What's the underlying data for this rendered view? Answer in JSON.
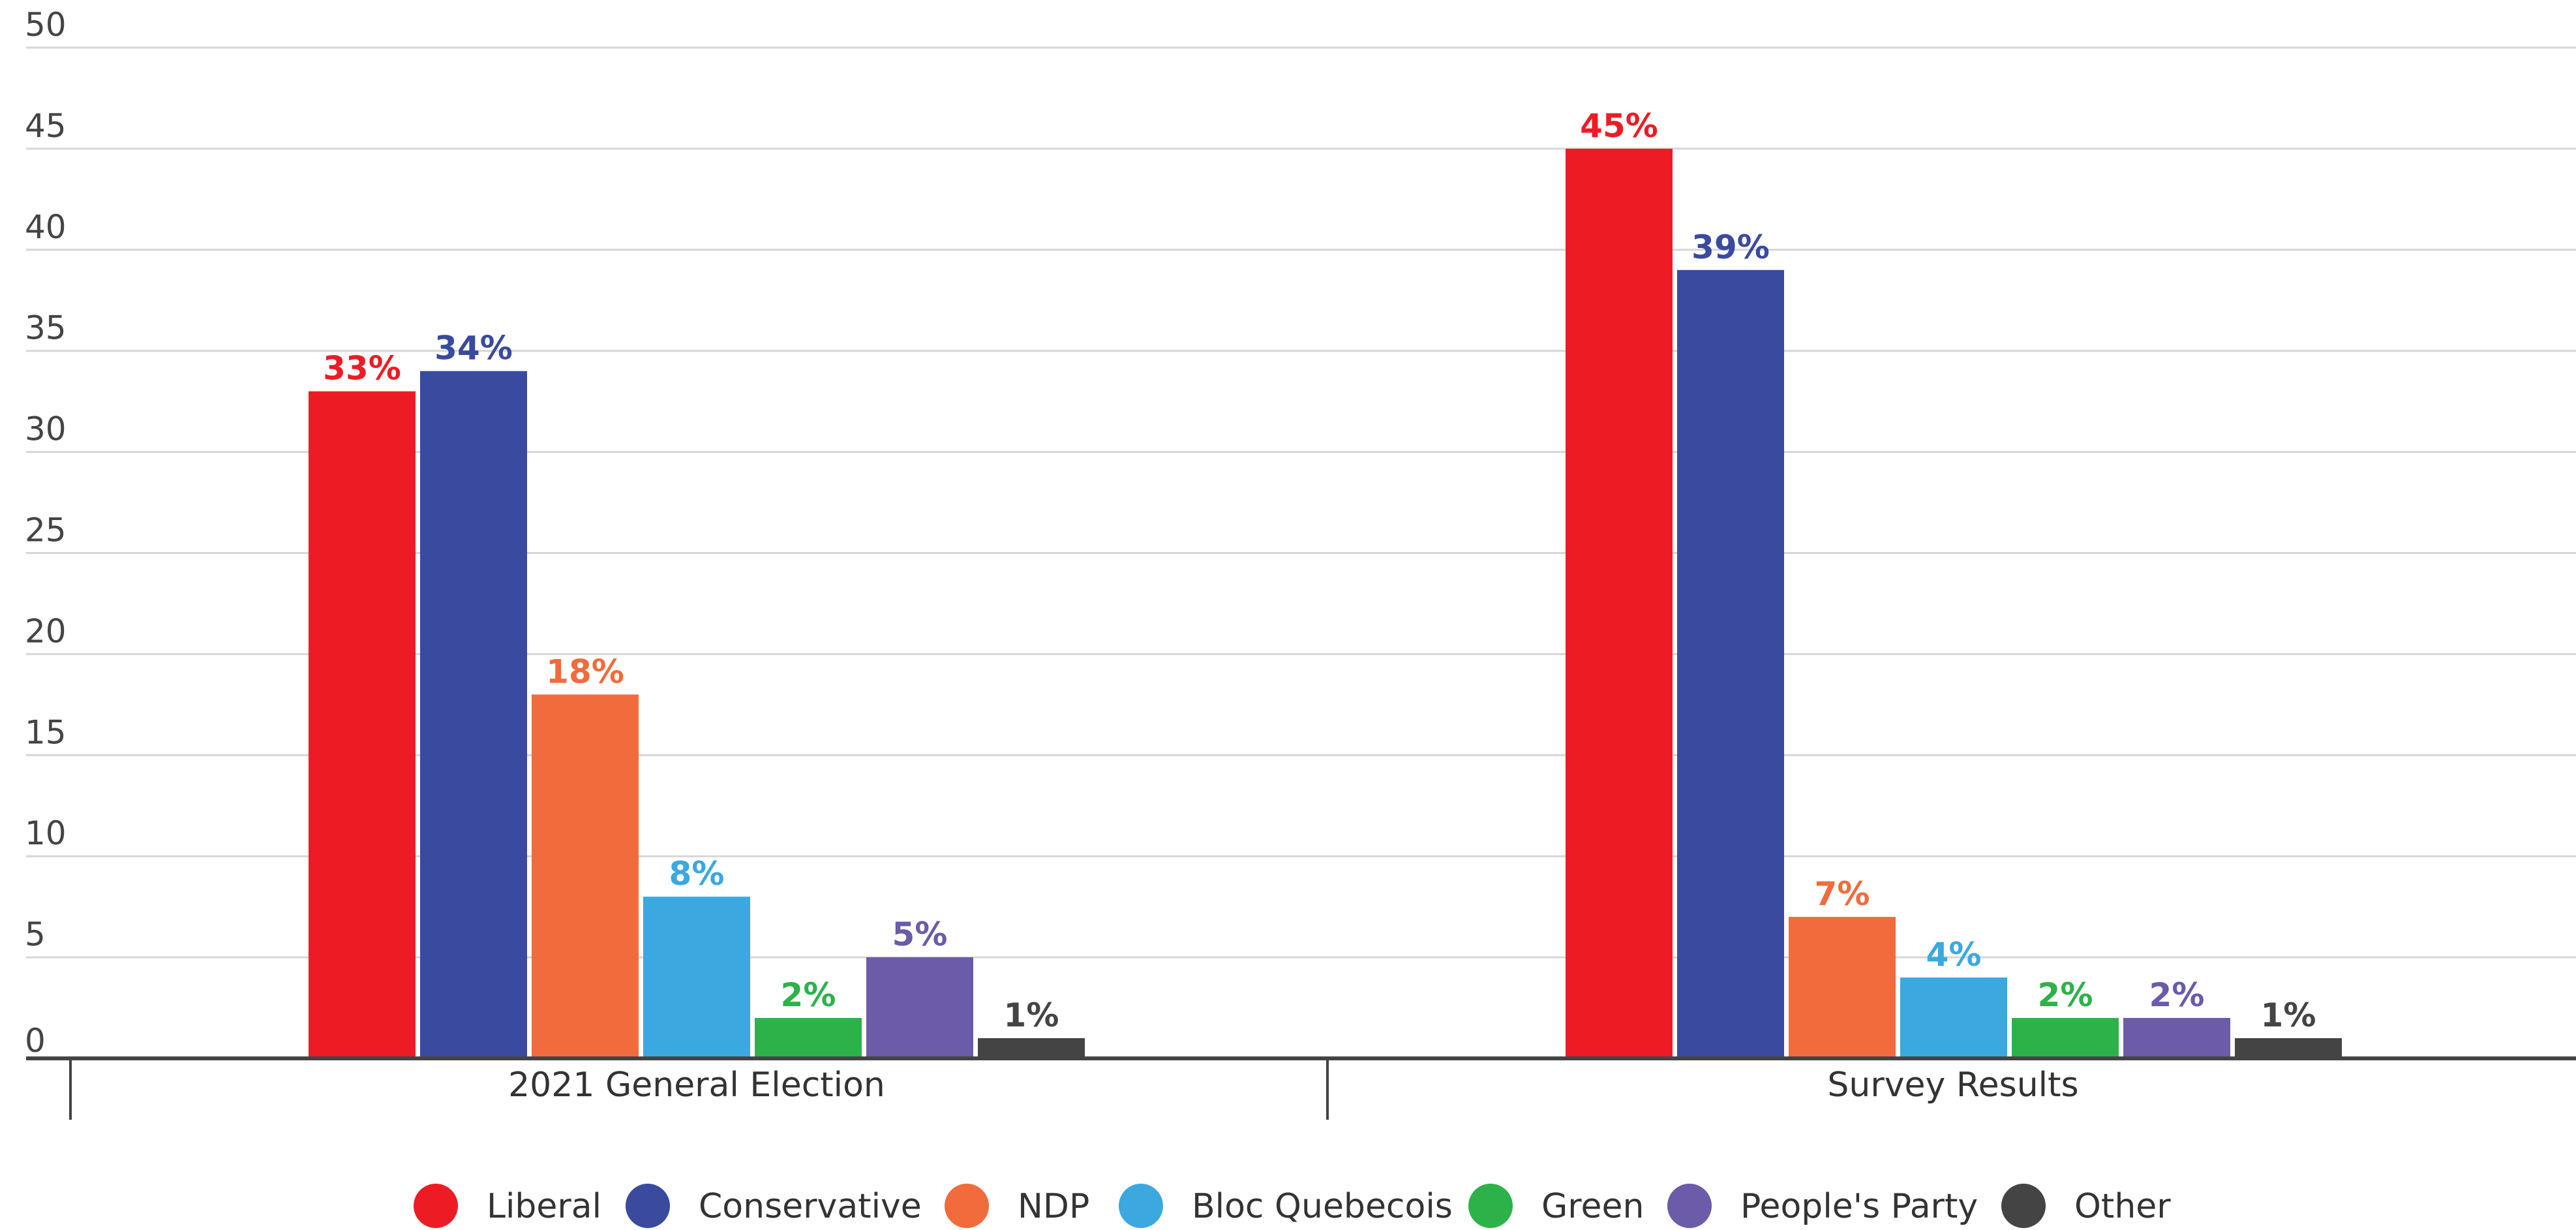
{
  "chart_data": {
    "type": "bar",
    "title": "",
    "xlabel": "",
    "ylabel": "",
    "ylim": [
      0,
      50
    ],
    "yticks": [
      0,
      5,
      10,
      15,
      20,
      25,
      30,
      35,
      40,
      45,
      50
    ],
    "grid": true,
    "legend_position": "bottom",
    "categories": [
      "2021 General Election",
      "Survey Results"
    ],
    "series": [
      {
        "name": "Liberal",
        "color": "#ed1c24",
        "values": [
          33,
          45
        ],
        "labels": [
          "33%",
          "45%"
        ]
      },
      {
        "name": "Conservative",
        "color": "#394a9f",
        "values": [
          34,
          39
        ],
        "labels": [
          "34%",
          "39%"
        ]
      },
      {
        "name": "NDP",
        "color": "#f26b3c",
        "values": [
          18,
          7
        ],
        "labels": [
          "18%",
          "7%"
        ]
      },
      {
        "name": "Bloc Quebecois",
        "color": "#3ba8e0",
        "values": [
          8,
          4
        ],
        "labels": [
          "8%",
          "4%"
        ]
      },
      {
        "name": "Green",
        "color": "#2db24a",
        "values": [
          2,
          2
        ],
        "labels": [
          "2%",
          "2%"
        ]
      },
      {
        "name": "People's Party",
        "color": "#6b5ba8",
        "values": [
          5,
          2
        ],
        "labels": [
          "5%",
          "2%"
        ]
      },
      {
        "name": "Other",
        "color": "#444444",
        "values": [
          1,
          1
        ],
        "labels": [
          "1%",
          "1%"
        ]
      }
    ]
  }
}
